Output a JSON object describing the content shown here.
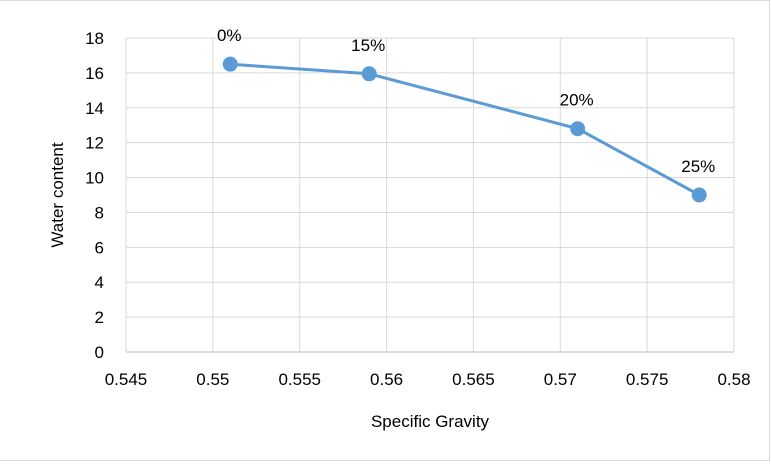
{
  "chart_data": {
    "type": "line",
    "title": "",
    "xlabel": "Specific Gravity",
    "ylabel": "Water content",
    "xlim": [
      0.545,
      0.58
    ],
    "ylim": [
      0,
      18
    ],
    "x_ticks": [
      0.545,
      0.55,
      0.555,
      0.56,
      0.565,
      0.57,
      0.575,
      0.58
    ],
    "x_tick_labels": [
      "0.545",
      "0.55",
      "0.555",
      "0.56",
      "0.565",
      "0.57",
      "0.575",
      "0.58"
    ],
    "y_ticks": [
      0,
      2,
      4,
      6,
      8,
      10,
      12,
      14,
      16,
      18
    ],
    "y_tick_labels": [
      "0",
      "2",
      "4",
      "6",
      "8",
      "10",
      "12",
      "14",
      "16",
      "18"
    ],
    "grid": {
      "vertical": true,
      "horizontal": true
    },
    "legend": null,
    "series": [
      {
        "color": "#5b9bd5",
        "marker": "circle",
        "x": [
          0.551,
          0.559,
          0.571,
          0.578
        ],
        "y": [
          16.5,
          15.95,
          12.8,
          9.0
        ],
        "data_labels": [
          "0%",
          "15%",
          "20%",
          "25%"
        ]
      }
    ]
  }
}
